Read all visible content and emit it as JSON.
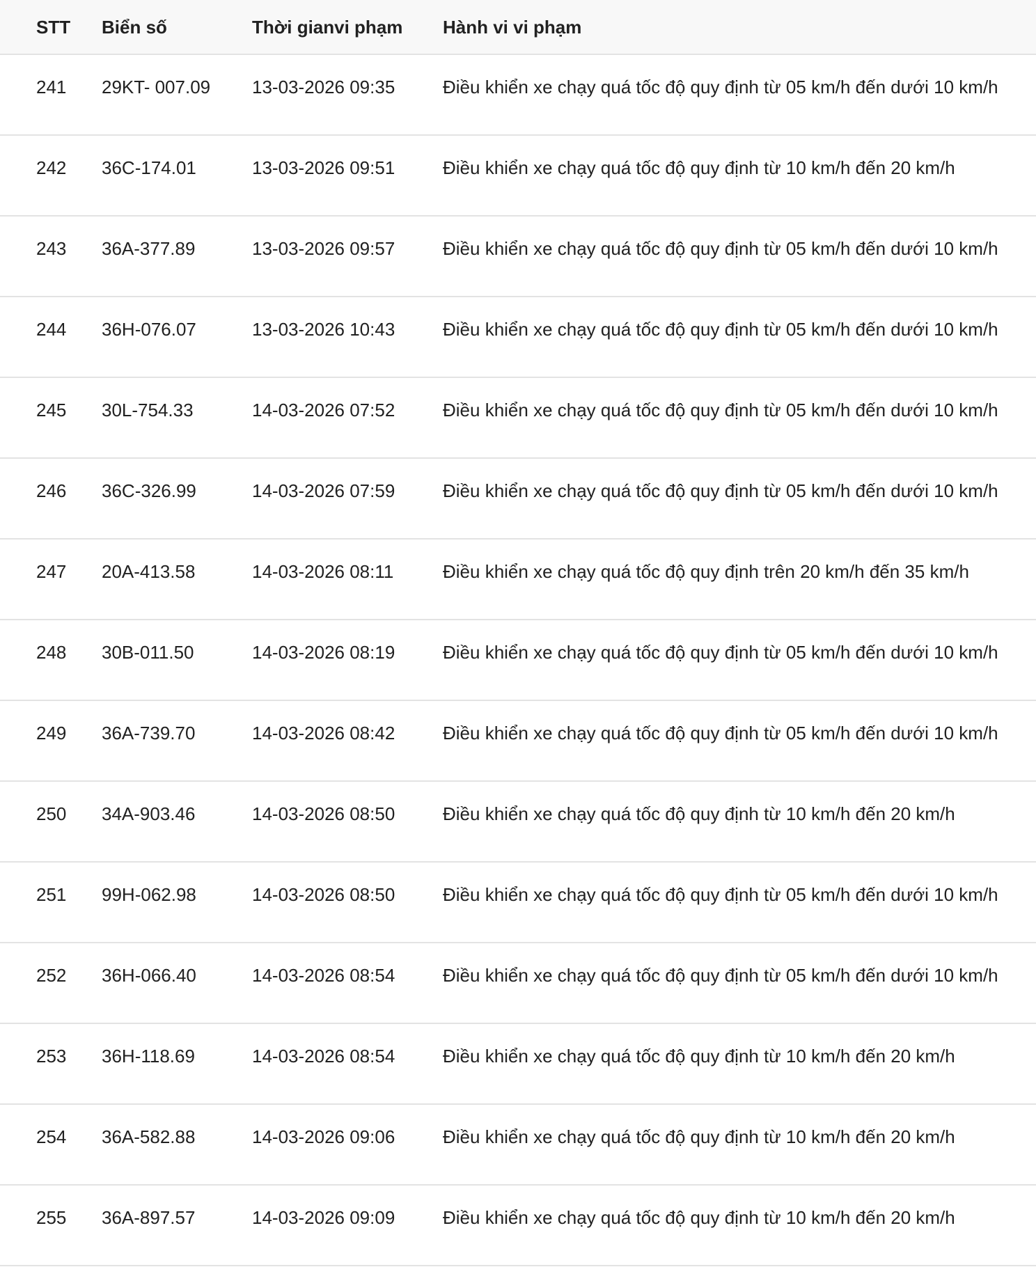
{
  "table": {
    "headers": [
      "STT",
      "Biển số",
      "Thời gianvi phạm",
      "Hành vi vi phạm"
    ],
    "rows": [
      {
        "stt": "241",
        "plate": "29KT- 007.09",
        "time": "13-03-2026 09:35",
        "violation": "Điều khiển xe chạy quá tốc độ quy định từ 05 km/h đến dưới 10 km/h"
      },
      {
        "stt": "242",
        "plate": "36C-174.01",
        "time": "13-03-2026 09:51",
        "violation": "Điều khiển xe chạy quá tốc độ quy định từ 10 km/h đến 20 km/h"
      },
      {
        "stt": "243",
        "plate": "36A-377.89",
        "time": "13-03-2026 09:57",
        "violation": "Điều khiển xe chạy quá tốc độ quy định từ 05 km/h đến dưới 10 km/h"
      },
      {
        "stt": "244",
        "plate": "36H-076.07",
        "time": "13-03-2026 10:43",
        "violation": "Điều khiển xe chạy quá tốc độ quy định từ 05 km/h đến dưới 10 km/h"
      },
      {
        "stt": "245",
        "plate": "30L-754.33",
        "time": "14-03-2026 07:52",
        "violation": "Điều khiển xe chạy quá tốc độ quy định từ 05 km/h đến dưới 10 km/h"
      },
      {
        "stt": "246",
        "plate": "36C-326.99",
        "time": "14-03-2026 07:59",
        "violation": "Điều khiển xe chạy quá tốc độ quy định từ 05 km/h đến dưới 10 km/h"
      },
      {
        "stt": "247",
        "plate": "20A-413.58",
        "time": "14-03-2026 08:11",
        "violation": "Điều khiển xe chạy quá tốc độ quy định trên 20 km/h đến 35 km/h"
      },
      {
        "stt": "248",
        "plate": "30B-011.50",
        "time": "14-03-2026 08:19",
        "violation": "Điều khiển xe chạy quá tốc độ quy định từ 05 km/h đến dưới 10 km/h"
      },
      {
        "stt": "249",
        "plate": "36A-739.70",
        "time": "14-03-2026 08:42",
        "violation": "Điều khiển xe chạy quá tốc độ quy định từ 05 km/h đến dưới 10 km/h"
      },
      {
        "stt": "250",
        "plate": "34A-903.46",
        "time": "14-03-2026 08:50",
        "violation": "Điều khiển xe chạy quá tốc độ quy định từ 10 km/h đến 20 km/h"
      },
      {
        "stt": "251",
        "plate": "99H-062.98",
        "time": "14-03-2026 08:50",
        "violation": "Điều khiển xe chạy quá tốc độ quy định từ 05 km/h đến dưới 10 km/h"
      },
      {
        "stt": "252",
        "plate": "36H-066.40",
        "time": "14-03-2026 08:54",
        "violation": "Điều khiển xe chạy quá tốc độ quy định từ 05 km/h đến dưới 10 km/h"
      },
      {
        "stt": "253",
        "plate": "36H-118.69",
        "time": "14-03-2026 08:54",
        "violation": "Điều khiển xe chạy quá tốc độ quy định từ 10 km/h đến 20 km/h"
      },
      {
        "stt": "254",
        "plate": "36A-582.88",
        "time": "14-03-2026 09:06",
        "violation": "Điều khiển xe chạy quá tốc độ quy định từ 10 km/h đến 20 km/h"
      },
      {
        "stt": "255",
        "plate": "36A-897.57",
        "time": "14-03-2026 09:09",
        "violation": "Điều khiển xe chạy quá tốc độ quy định từ 10 km/h đến 20 km/h"
      }
    ]
  }
}
